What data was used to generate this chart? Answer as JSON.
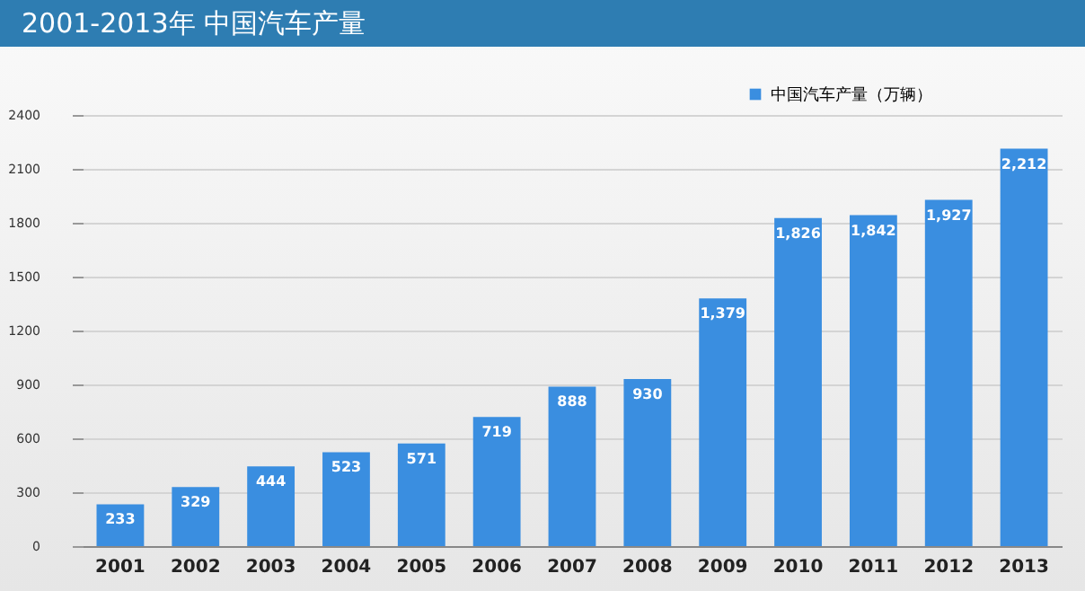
{
  "chart_data": {
    "type": "bar",
    "title": "2001-2013年 中国汽车产量",
    "categories": [
      "2001",
      "2002",
      "2003",
      "2004",
      "2005",
      "2006",
      "2007",
      "2008",
      "2009",
      "2010",
      "2011",
      "2012",
      "2013"
    ],
    "series": [
      {
        "name": "中国汽车产量（万辆）",
        "color": "#3a8ee0",
        "values": [
          233,
          329,
          444,
          523,
          571,
          719,
          888,
          930,
          1379,
          1826,
          1842,
          1927,
          2212
        ]
      }
    ],
    "value_labels": [
      "233",
      "329",
      "444",
      "523",
      "571",
      "719",
      "888",
      "930",
      "1,379",
      "1,826",
      "1,842",
      "1,927",
      "2,212"
    ],
    "ylim": [
      0,
      2400
    ],
    "yticks": [
      0,
      300,
      600,
      900,
      1200,
      1500,
      1800,
      2100,
      2400
    ],
    "grid": true,
    "legend": "top right"
  }
}
